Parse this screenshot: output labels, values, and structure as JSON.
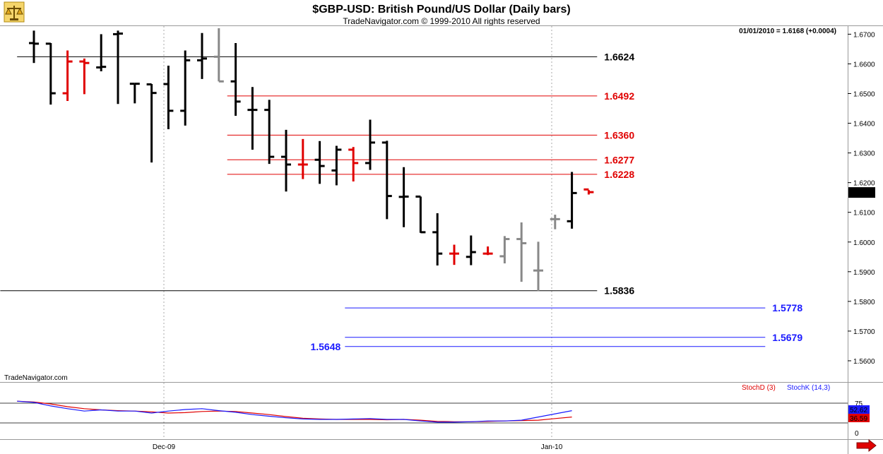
{
  "header": {
    "title": "$GBP-USD:  British Pound/US Dollar  (Daily bars)",
    "copyright": "TradeNavigator.com © 1999-2010 All rights reserved",
    "quote": "01/01/2010 = 1.6168 (+0.0004)"
  },
  "watermark": "TradeNavigator.com",
  "logo_icon": "scales-icon",
  "arrow_icon": "right-arrow-icon",
  "colors": {
    "up_bar": "#000000",
    "down_bar": "#e00000",
    "neutral_bar": "#888888",
    "stochD": "#e00000",
    "stochK": "#1a1aff",
    "level_black": "#000000",
    "level_red": "#e00000",
    "level_blue": "#1a1aff"
  },
  "chart_data": [
    {
      "type": "ohlc",
      "title": "$GBP-USD:  British Pound/US Dollar  (Daily bars)",
      "ylim": [
        1.555,
        1.672
      ],
      "y_ticks": [
        "1.6700",
        "1.6600",
        "1.6500",
        "1.6400",
        "1.6300",
        "1.6200",
        "1.6100",
        "1.6000",
        "1.5900",
        "1.5800",
        "1.5700",
        "1.5600"
      ],
      "x_ticks": [
        "Dec-09",
        "Jan-10"
      ],
      "last_price_label": "1.6168",
      "bars": [
        {
          "o": 1.667,
          "h": 1.6712,
          "l": 1.6603,
          "c": 1.6668,
          "col": "up"
        },
        {
          "o": 1.6668,
          "h": 1.667,
          "l": 1.6463,
          "c": 1.6501,
          "col": "up"
        },
        {
          "o": 1.6501,
          "h": 1.6645,
          "l": 1.6475,
          "c": 1.6608,
          "col": "down"
        },
        {
          "o": 1.6608,
          "h": 1.6618,
          "l": 1.6498,
          "c": 1.6603,
          "col": "down"
        },
        {
          "o": 1.6588,
          "h": 1.67,
          "l": 1.6575,
          "c": 1.659,
          "col": "up"
        },
        {
          "o": 1.67,
          "h": 1.6712,
          "l": 1.6465,
          "c": 1.6702,
          "col": "up"
        },
        {
          "o": 1.6533,
          "h": 1.6532,
          "l": 1.6467,
          "c": 1.6533,
          "col": "up"
        },
        {
          "o": 1.6531,
          "h": 1.6532,
          "l": 1.6268,
          "c": 1.6502,
          "col": "up"
        },
        {
          "o": 1.6532,
          "h": 1.6594,
          "l": 1.638,
          "c": 1.6442,
          "col": "up"
        },
        {
          "o": 1.6442,
          "h": 1.6645,
          "l": 1.6392,
          "c": 1.6612,
          "col": "up"
        },
        {
          "o": 1.6612,
          "h": 1.6704,
          "l": 1.6549,
          "c": 1.6618,
          "col": "up"
        },
        {
          "o": 1.6624,
          "h": 1.672,
          "l": 1.6541,
          "c": 1.6541,
          "col": "neutral"
        },
        {
          "o": 1.6541,
          "h": 1.667,
          "l": 1.6425,
          "c": 1.6473,
          "col": "up"
        },
        {
          "o": 1.6445,
          "h": 1.6522,
          "l": 1.6311,
          "c": 1.6445,
          "col": "up"
        },
        {
          "o": 1.6445,
          "h": 1.6479,
          "l": 1.6263,
          "c": 1.6287,
          "col": "up"
        },
        {
          "o": 1.6287,
          "h": 1.6378,
          "l": 1.617,
          "c": 1.6261,
          "col": "up"
        },
        {
          "o": 1.6261,
          "h": 1.6347,
          "l": 1.6212,
          "c": 1.6261,
          "col": "down"
        },
        {
          "o": 1.6277,
          "h": 1.634,
          "l": 1.6196,
          "c": 1.6256,
          "col": "up"
        },
        {
          "o": 1.6241,
          "h": 1.6324,
          "l": 1.6191,
          "c": 1.6311,
          "col": "up"
        },
        {
          "o": 1.6311,
          "h": 1.632,
          "l": 1.6204,
          "c": 1.6266,
          "col": "down"
        },
        {
          "o": 1.6266,
          "h": 1.6412,
          "l": 1.6243,
          "c": 1.6335,
          "col": "up"
        },
        {
          "o": 1.6335,
          "h": 1.6341,
          "l": 1.6077,
          "c": 1.6155,
          "col": "up"
        },
        {
          "o": 1.6152,
          "h": 1.6252,
          "l": 1.605,
          "c": 1.6153,
          "col": "up"
        },
        {
          "o": 1.6153,
          "h": 1.6153,
          "l": 1.6031,
          "c": 1.6033,
          "col": "up"
        },
        {
          "o": 1.6033,
          "h": 1.6097,
          "l": 1.5921,
          "c": 1.5961,
          "col": "up"
        },
        {
          "o": 1.5961,
          "h": 1.5991,
          "l": 1.5923,
          "c": 1.5961,
          "col": "down"
        },
        {
          "o": 1.595,
          "h": 1.6022,
          "l": 1.5922,
          "c": 1.5966,
          "col": "up"
        },
        {
          "o": 1.5961,
          "h": 1.5985,
          "l": 1.5956,
          "c": 1.5961,
          "col": "down"
        },
        {
          "o": 1.5952,
          "h": 1.602,
          "l": 1.5928,
          "c": 1.601,
          "col": "neutral"
        },
        {
          "o": 1.601,
          "h": 1.6066,
          "l": 1.5866,
          "c": 1.5996,
          "col": "neutral"
        },
        {
          "o": 1.5904,
          "h": 1.6001,
          "l": 1.5835,
          "c": 1.5904,
          "col": "neutral"
        },
        {
          "o": 1.6077,
          "h": 1.6092,
          "l": 1.6043,
          "c": 1.6077,
          "col": "neutral"
        },
        {
          "o": 1.607,
          "h": 1.6236,
          "l": 1.6045,
          "c": 1.6165,
          "col": "up"
        },
        {
          "o": 1.6177,
          "h": 1.6175,
          "l": 1.616,
          "c": 1.6168,
          "col": "down"
        }
      ],
      "levels": [
        {
          "value": 1.6624,
          "label": "1.6624",
          "color": "black",
          "x_from_bar": -1,
          "x_to_bar": 33.5,
          "label_side": "right"
        },
        {
          "value": 1.6492,
          "label": "1.6492",
          "color": "red",
          "x_from_bar": 11.5,
          "x_to_bar": 33.5,
          "label_side": "right"
        },
        {
          "value": 1.636,
          "label": "1.6360",
          "color": "red",
          "x_from_bar": 11.5,
          "x_to_bar": 33.5,
          "label_side": "right"
        },
        {
          "value": 1.6277,
          "label": "1.6277",
          "color": "red",
          "x_from_bar": 11.5,
          "x_to_bar": 33.5,
          "label_side": "right"
        },
        {
          "value": 1.6228,
          "label": "1.6228",
          "color": "red",
          "x_from_bar": 11.5,
          "x_to_bar": 33.5,
          "label_side": "right"
        },
        {
          "value": 1.5836,
          "label": "1.5836",
          "color": "black",
          "x_from_bar": -2,
          "x_to_bar": 33.5,
          "label_side": "right"
        },
        {
          "value": 1.5778,
          "label": "1.5778",
          "color": "blue",
          "x_from_bar": 18.5,
          "x_to_bar": 43.5,
          "label_side": "right"
        },
        {
          "value": 1.5679,
          "label": "1.5679",
          "color": "blue",
          "x_from_bar": 18.5,
          "x_to_bar": 43.5,
          "label_side": "right"
        },
        {
          "value": 1.5648,
          "label": "1.5648",
          "color": "blue",
          "x_from_bar": 18.5,
          "x_to_bar": 43.5,
          "label_side": "left"
        }
      ]
    },
    {
      "type": "line",
      "title": "",
      "ylim": [
        0,
        100
      ],
      "y_ticks": [
        "75",
        "0"
      ],
      "reference_lines": [
        75,
        25
      ],
      "legend": [
        "StochD (3)",
        "StochK (14,3)"
      ],
      "series": [
        {
          "name": "StochD (3)",
          "color": "red",
          "values": [
            80,
            78,
            73,
            66,
            61,
            58,
            56,
            55,
            53,
            50,
            51,
            54,
            55,
            54,
            50,
            46,
            41,
            37,
            35,
            34,
            34,
            34,
            33,
            34,
            32,
            29,
            28,
            28,
            29,
            30,
            31,
            32,
            36,
            40
          ]
        },
        {
          "name": "StochK (14,3)",
          "color": "blue",
          "values": [
            80,
            77,
            68,
            61,
            55,
            58,
            55,
            55,
            50,
            55,
            59,
            61,
            56,
            52,
            46,
            42,
            38,
            35,
            34,
            34,
            35,
            36,
            34,
            34,
            30,
            27,
            27,
            28,
            30,
            30,
            32,
            40,
            48,
            56
          ]
        }
      ],
      "value_labels": [
        "52.62",
        "36.59"
      ]
    }
  ]
}
